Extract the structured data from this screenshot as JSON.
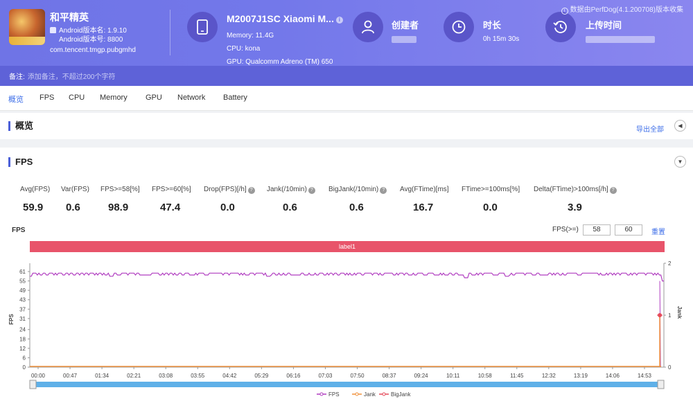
{
  "app": {
    "name": "和平精英",
    "version_name": "Android版本名: 1.9.10",
    "version_code": "Android版本号: 8800",
    "package": "com.tencent.tmgp.pubgmhd"
  },
  "device": {
    "name": "M2007J1SC Xiaomi M...",
    "memory": "Memory: 11.4G",
    "cpu": "CPU: kona",
    "gpu": "GPU: Qualcomm Adreno (TM) 650"
  },
  "creator": {
    "label": "创建者"
  },
  "duration": {
    "label": "时长",
    "value": "0h 15m 30s"
  },
  "upload": {
    "label": "上传时间"
  },
  "collect_note": "数据由PerfDog(4.1.200708)版本收集",
  "note": {
    "label": "备注:",
    "placeholder": "添加备注，不超过200个字符"
  },
  "tabs": [
    "概览",
    "FPS",
    "CPU",
    "Memory",
    "GPU",
    "Network",
    "Battery"
  ],
  "overview": {
    "title": "概览",
    "export_label": "导出全部"
  },
  "fps_section": {
    "title": "FPS",
    "metrics": [
      {
        "label": "Avg(FPS)",
        "value": "59.9",
        "help": false
      },
      {
        "label": "Var(FPS)",
        "value": "0.6",
        "help": false
      },
      {
        "label": "FPS>=58[%]",
        "value": "98.9",
        "help": false
      },
      {
        "label": "FPS>=60[%]",
        "value": "47.4",
        "help": false
      },
      {
        "label": "Drop(FPS)[/h]",
        "value": "0.0",
        "help": true
      },
      {
        "label": "Jank(/10min)",
        "value": "0.6",
        "help": true
      },
      {
        "label": "BigJank(/10min)",
        "value": "0.6",
        "help": true
      },
      {
        "label": "Avg(FTime)[ms]",
        "value": "16.7",
        "help": false
      },
      {
        "label": "FTime>=100ms[%]",
        "value": "0.0",
        "help": false
      },
      {
        "label": "Delta(FTime)>100ms[/h]",
        "value": "3.9",
        "help": true
      }
    ],
    "chart_title": "FPS",
    "threshold_label": "FPS(>=)",
    "threshold_values": [
      "58",
      "60"
    ],
    "reset_label": "重置",
    "label_bar": "label1"
  },
  "chart_data": {
    "type": "line",
    "title": "",
    "ylabel": "FPS",
    "y2label": "Jank",
    "ylim": [
      0,
      61
    ],
    "y2lim": [
      0,
      2
    ],
    "yticks": [
      "61",
      "55",
      "49",
      "43",
      "37",
      "31",
      "24",
      "18",
      "12",
      "6",
      "0"
    ],
    "y2ticks": [
      "2",
      "1",
      "0"
    ],
    "xticks": [
      "00:00",
      "00:47",
      "01:34",
      "02:21",
      "03:08",
      "03:55",
      "04:42",
      "05:29",
      "06:16",
      "07:03",
      "07:50",
      "08:37",
      "09:24",
      "10:11",
      "10:58",
      "11:45",
      "12:32",
      "13:19",
      "14:06",
      "14:53"
    ],
    "x_end_seconds": 930,
    "series": [
      {
        "name": "FPS",
        "color": "#b03cc0",
        "typical": 60,
        "dips": [
          [
            0,
            58
          ],
          [
            120,
            58
          ],
          [
            350,
            58
          ],
          [
            640,
            57
          ],
          [
            700,
            58
          ],
          [
            930,
            55
          ]
        ]
      },
      {
        "name": "Jank",
        "color": "#f0903a",
        "typical": 0,
        "points": [
          [
            925,
            1
          ]
        ]
      },
      {
        "name": "BigJank",
        "color": "#e54a5a",
        "typical": 0,
        "points": [
          [
            925,
            1
          ]
        ]
      }
    ],
    "legend": "bottom-center"
  }
}
